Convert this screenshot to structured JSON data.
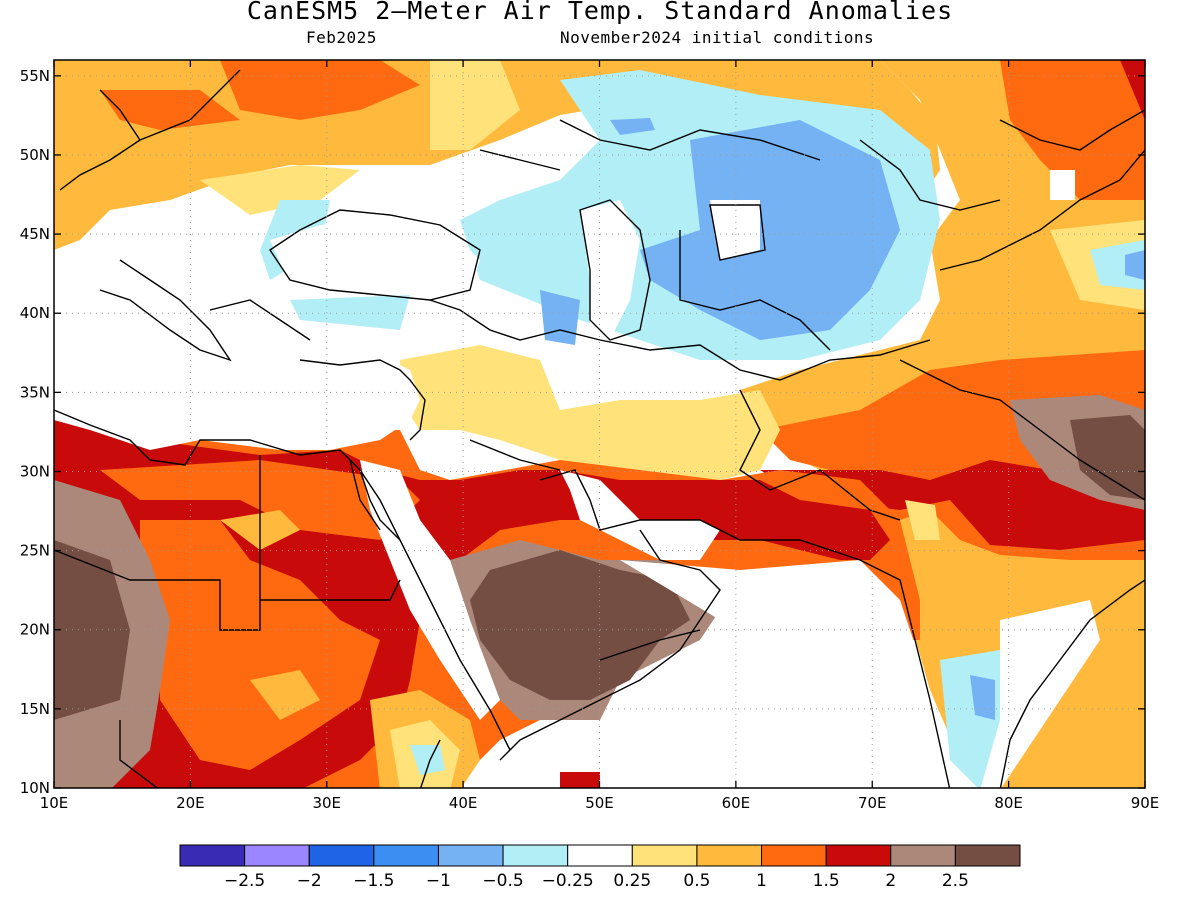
{
  "title": "CanESM5 2—Meter Air Temp. Standard Anomalies",
  "subtitle_left": "Feb2025",
  "subtitle_right": "November2024 initial conditions",
  "map": {
    "lon_range": [
      10,
      90
    ],
    "lat_range": [
      10,
      56
    ],
    "lon_ticks": [
      {
        "value": 10,
        "label": "10E"
      },
      {
        "value": 20,
        "label": "20E"
      },
      {
        "value": 30,
        "label": "30E"
      },
      {
        "value": 40,
        "label": "40E"
      },
      {
        "value": 50,
        "label": "50E"
      },
      {
        "value": 60,
        "label": "60E"
      },
      {
        "value": 70,
        "label": "70E"
      },
      {
        "value": 80,
        "label": "80E"
      },
      {
        "value": 90,
        "label": "90E"
      }
    ],
    "lat_ticks": [
      {
        "value": 10,
        "label": "10N"
      },
      {
        "value": 15,
        "label": "15N"
      },
      {
        "value": 20,
        "label": "20N"
      },
      {
        "value": 25,
        "label": "25N"
      },
      {
        "value": 30,
        "label": "30N"
      },
      {
        "value": 35,
        "label": "35N"
      },
      {
        "value": 40,
        "label": "40N"
      },
      {
        "value": 45,
        "label": "45N"
      },
      {
        "value": 50,
        "label": "50N"
      },
      {
        "value": 55,
        "label": "55N"
      }
    ]
  },
  "colorbar": {
    "colors": [
      "#3a2bb4",
      "#9b86ff",
      "#1f64e6",
      "#3b8ef2",
      "#74b2f4",
      "#b2eef6",
      "#ffffff",
      "#ffe27a",
      "#ffb93c",
      "#ff6a10",
      "#c80a0a",
      "#ac887a",
      "#744e42"
    ],
    "labels": [
      "−2.5",
      "−2",
      "−1.5",
      "−1",
      "−0.5",
      "−0.25",
      "0.25",
      "0.5",
      "1",
      "1.5",
      "2",
      "2.5"
    ]
  }
}
